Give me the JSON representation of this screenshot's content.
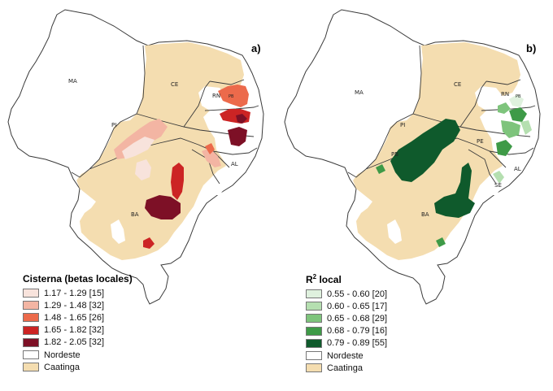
{
  "panels": [
    {
      "letter": "a)",
      "legend": {
        "title": "Cisterna (betas locales)",
        "title_sup": "",
        "items": [
          {
            "label": "1.17 - 1.29 [15]",
            "color": "#f8e3dc"
          },
          {
            "label": "1.29 - 1.48 [32]",
            "color": "#f3b5a3"
          },
          {
            "label": "1.48 - 1.65 [26]",
            "color": "#ec6a4b"
          },
          {
            "label": "1.65 - 1.82 [32]",
            "color": "#cc2424"
          },
          {
            "label": "1.82 - 2.05 [32]",
            "color": "#7d1026"
          },
          {
            "label": "Nordeste",
            "color": "#ffffff"
          },
          {
            "label": "Caatinga",
            "color": "#f4ddb0"
          }
        ]
      }
    },
    {
      "letter": "b)",
      "legend": {
        "title": "R",
        "title_sup": "2",
        "title_rest": " local",
        "items": [
          {
            "label": "0.55 - 0.60 [20]",
            "color": "#dff1de"
          },
          {
            "label": "0.60 - 0.65 [17]",
            "color": "#b5dfb0"
          },
          {
            "label": "0.65 - 0.68 [29]",
            "color": "#7ec47c"
          },
          {
            "label": "0.68 - 0.79 [16]",
            "color": "#3e9a47"
          },
          {
            "label": "0.79 - 0.89 [55]",
            "color": "#0f5a2c"
          },
          {
            "label": "Nordeste",
            "color": "#ffffff"
          },
          {
            "label": "Caatinga",
            "color": "#f4ddb0"
          }
        ]
      }
    }
  ],
  "state_labels": [
    "MA",
    "PI",
    "CE",
    "RN",
    "PB",
    "PE",
    "AL",
    "SE",
    "BA"
  ],
  "colors": {
    "caatinga": "#f4ddb0",
    "nordeste": "#ffffff",
    "border": "#3a3a3a"
  }
}
